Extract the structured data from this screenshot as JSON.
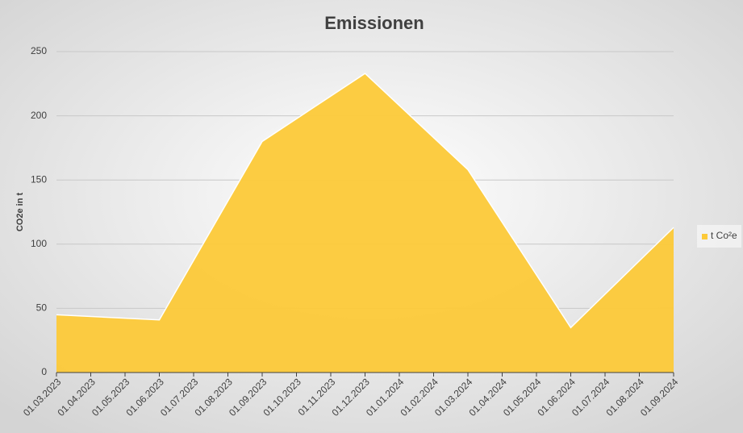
{
  "chart_data": {
    "type": "area",
    "title": "Emissionen",
    "y_label": "CO2e in t",
    "x": [
      "01.03.2023",
      "01.06.2023",
      "01.09.2023",
      "01.12.2023",
      "01.03.2024",
      "01.06.2024",
      "01.09.2024"
    ],
    "xticks": [
      "01.03.2023",
      "01.04.2023",
      "01.05.2023",
      "01.06.2023",
      "01.07.2023",
      "01.08.2023",
      "01.09.2023",
      "01.10.2023",
      "01.11.2023",
      "01.12.2023",
      "01.01.2024",
      "01.02.2024",
      "01.03.2024",
      "01.04.2024",
      "01.05.2024",
      "01.06.2024",
      "01.07.2024",
      "01.08.2024",
      "01.09.2024"
    ],
    "series": [
      {
        "name": "t Co²e",
        "color": "#fcc938",
        "values": [
          45,
          41,
          180,
          233,
          158,
          35,
          113
        ]
      }
    ],
    "ylim": [
      0,
      250
    ],
    "yticks": [
      0,
      50,
      100,
      150,
      200,
      250
    ],
    "grid": true,
    "legend": "right"
  }
}
